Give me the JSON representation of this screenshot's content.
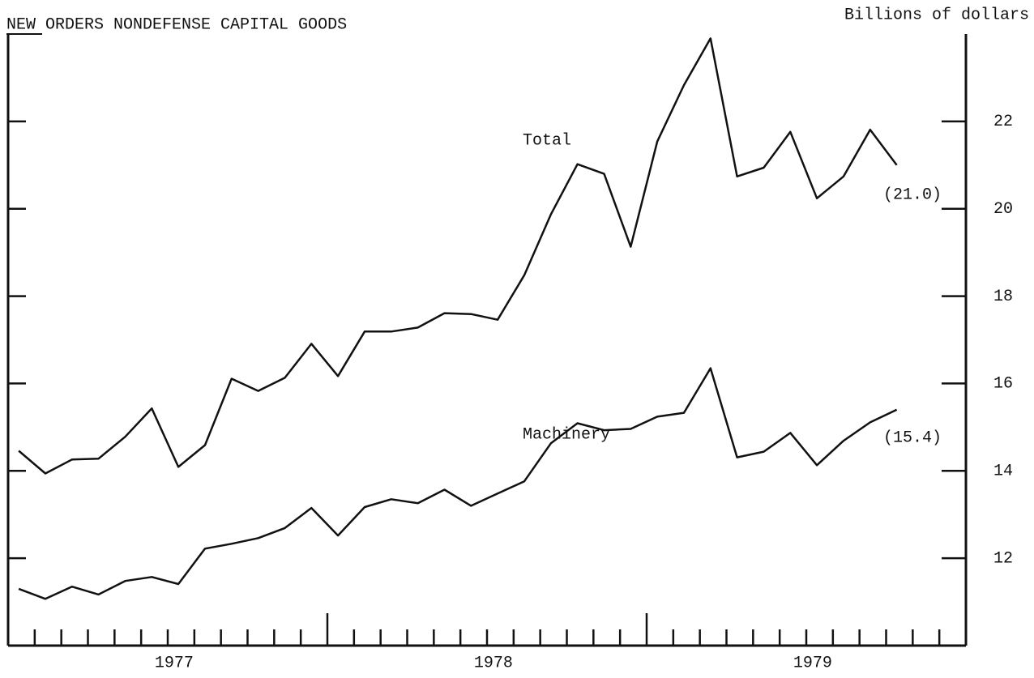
{
  "chart_data": {
    "type": "line",
    "title": "NEW ORDERS NONDEFENSE CAPITAL GOODS",
    "y_axis_label": "Billions of dollars",
    "categories": [
      null,
      null,
      null,
      null,
      null,
      null,
      null,
      null,
      null,
      null,
      null,
      null,
      null,
      null,
      null,
      null,
      null,
      null,
      null,
      null,
      null,
      null,
      null,
      null,
      null,
      null,
      null,
      null,
      null,
      null,
      null,
      null,
      null,
      null
    ],
    "year_labels": [
      "1977",
      "1978",
      "1979"
    ],
    "series": [
      {
        "name": "Total",
        "color": "#111111",
        "values": [
          14.46,
          13.94,
          14.26,
          14.28,
          14.78,
          15.43,
          14.09,
          14.59,
          16.11,
          15.83,
          16.13,
          16.91,
          16.17,
          17.19,
          17.19,
          17.28,
          17.61,
          17.59,
          17.46,
          18.48,
          19.87,
          21.02,
          20.8,
          19.13,
          21.54,
          22.83,
          23.9,
          20.74,
          20.94,
          21.76,
          20.24,
          20.74,
          21.81,
          21.0
        ]
      },
      {
        "name": "Machinery",
        "color": "#111111",
        "values": [
          11.3,
          11.07,
          11.35,
          11.17,
          11.48,
          11.57,
          11.41,
          12.22,
          12.33,
          12.46,
          12.69,
          13.15,
          12.52,
          13.17,
          13.35,
          13.26,
          13.57,
          13.2,
          13.48,
          13.76,
          14.63,
          15.09,
          14.93,
          14.96,
          15.24,
          15.33,
          16.35,
          14.31,
          14.44,
          14.87,
          14.13,
          14.69,
          15.11,
          15.4
        ]
      }
    ],
    "annotations": [
      "(21.0)",
      "(15.4)"
    ],
    "ylim": [
      10,
      24
    ],
    "yticks": [
      12,
      14,
      16,
      18,
      20,
      22
    ],
    "y_axis_side": "right"
  }
}
